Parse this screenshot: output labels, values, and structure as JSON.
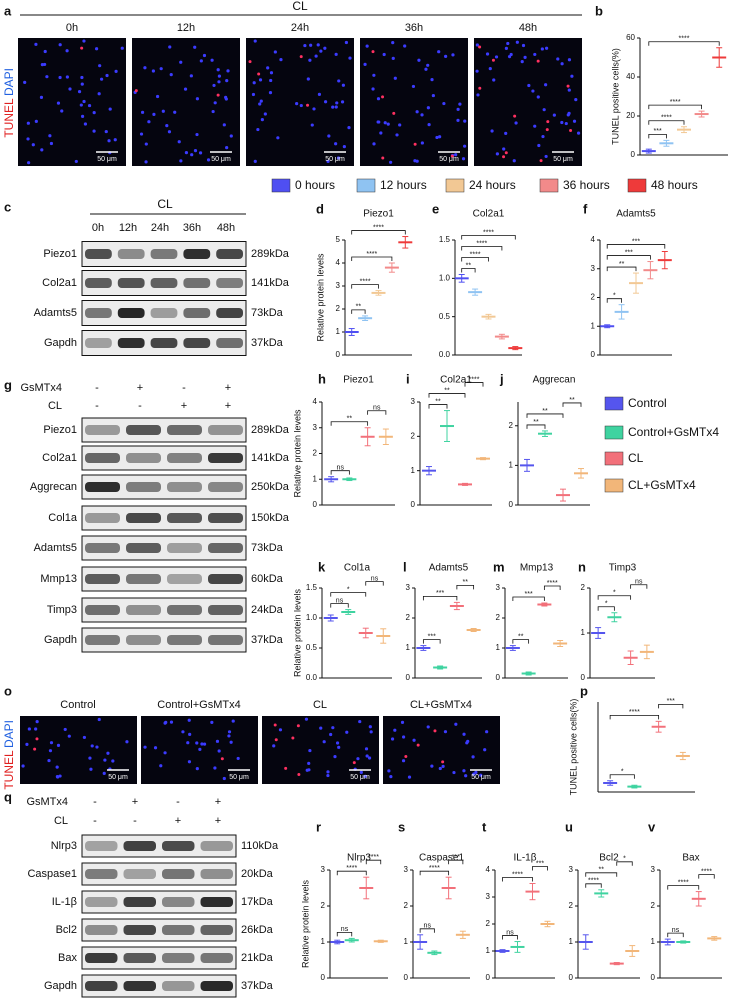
{
  "panel_a": {
    "label": "a",
    "group": "CL",
    "times": [
      "0h",
      "12h",
      "24h",
      "36h",
      "48h"
    ],
    "stain": [
      "TUNEL",
      "DAPI"
    ],
    "scale_bar": "50 μm"
  },
  "time_legend": [
    {
      "name": "0 hours",
      "color": "#4f4ff2"
    },
    {
      "name": "12 hours",
      "color": "#8fc3f2"
    },
    {
      "name": "24 hours",
      "color": "#f2c894"
    },
    {
      "name": "36 hours",
      "color": "#f28a8a"
    },
    {
      "name": "48 hours",
      "color": "#ee3a3a"
    }
  ],
  "panel_c": {
    "label": "c",
    "group": "CL",
    "lanes": [
      "0h",
      "12h",
      "24h",
      "36h",
      "48h"
    ],
    "rows": [
      {
        "protein": "Piezo1",
        "size": "289kDa"
      },
      {
        "protein": "Col2a1",
        "size": "141kDa"
      },
      {
        "protein": "Adamts5",
        "size": "73kDa"
      },
      {
        "protein": "Gapdh",
        "size": "37kDa"
      }
    ]
  },
  "panel_g": {
    "label": "g",
    "conditions": [
      {
        "name": "GsMTx4",
        "signs": [
          "-",
          "+",
          "-",
          "+"
        ]
      },
      {
        "name": "CL",
        "signs": [
          "-",
          "-",
          "+",
          "+"
        ]
      }
    ],
    "rows": [
      {
        "protein": "Piezo1",
        "size": "289kDa"
      },
      {
        "protein": "Col2a1",
        "size": "141kDa"
      },
      {
        "protein": "Aggrecan",
        "size": "250kDa"
      },
      {
        "protein": "Col1a",
        "size": "150kDa"
      },
      {
        "protein": "Adamts5",
        "size": "73kDa"
      },
      {
        "protein": "Mmp13",
        "size": "60kDa"
      },
      {
        "protein": "Timp3",
        "size": "24kDa"
      },
      {
        "protein": "Gapdh",
        "size": "37kDa"
      }
    ]
  },
  "treatment_legend": [
    {
      "name": "Control",
      "color": "#5555ee"
    },
    {
      "name": "Control+GsMTx4",
      "color": "#3fd3a0"
    },
    {
      "name": "CL",
      "color": "#f2707a"
    },
    {
      "name": "CL+GsMTx4",
      "color": "#f2b679"
    }
  ],
  "panel_o": {
    "label": "o",
    "groups": [
      "Control",
      "Control+GsMTx4",
      "CL",
      "CL+GsMTx4"
    ],
    "stain": [
      "TUNEL",
      "DAPI"
    ],
    "scale_bar": "50 μm"
  },
  "panel_q": {
    "label": "q",
    "conditions": [
      {
        "name": "GsMTx4",
        "signs": [
          "-",
          "+",
          "-",
          "+"
        ]
      },
      {
        "name": "CL",
        "signs": [
          "-",
          "-",
          "+",
          "+"
        ]
      }
    ],
    "rows": [
      {
        "protein": "Nlrp3",
        "size": "110kDa"
      },
      {
        "protein": "Caspase1",
        "size": "20kDa"
      },
      {
        "protein": "IL-1β",
        "size": "17kDa"
      },
      {
        "protein": "Bcl2",
        "size": "26kDa"
      },
      {
        "protein": "Bax",
        "size": "21kDa"
      },
      {
        "protein": "Gapdh",
        "size": "37kDa"
      }
    ]
  },
  "chart_data": [
    {
      "type": "dotplot",
      "panel": "b",
      "ylabel": "TUNEL positive cells(%)",
      "values": [
        2,
        6,
        13,
        21,
        50
      ],
      "errors": [
        1,
        1.5,
        1.5,
        1.5,
        5
      ],
      "colors": [
        "#4f4ff2",
        "#8fc3f2",
        "#f2c894",
        "#f28a8a",
        "#ee3a3a"
      ],
      "ylim": [
        0,
        60
      ],
      "yticks": [
        0,
        20,
        40,
        60
      ],
      "brackets": [
        {
          "label": "***",
          "groups": [
            0,
            1
          ]
        },
        {
          "label": "****",
          "groups": [
            0,
            2
          ]
        },
        {
          "label": "****",
          "groups": [
            0,
            3
          ]
        },
        {
          "label": "****",
          "groups": [
            0,
            4
          ]
        }
      ]
    },
    {
      "type": "dotplot",
      "panel": "d",
      "title": "Piezo1",
      "ylabel": "Relative protein levels",
      "values": [
        1,
        1.6,
        2.7,
        3.8,
        4.9
      ],
      "errors": [
        0.15,
        0.1,
        0.1,
        0.2,
        0.25
      ],
      "colors": [
        "#4f4ff2",
        "#8fc3f2",
        "#f2c894",
        "#f28a8a",
        "#ee3a3a"
      ],
      "ylim": [
        0,
        5
      ],
      "yticks": [
        0,
        1,
        2,
        3,
        4,
        5
      ],
      "brackets": [
        {
          "label": "**",
          "groups": [
            0,
            1
          ]
        },
        {
          "label": "****",
          "groups": [
            0,
            2
          ]
        },
        {
          "label": "****",
          "groups": [
            0,
            3
          ]
        },
        {
          "label": "****",
          "groups": [
            0,
            4
          ]
        }
      ]
    },
    {
      "type": "dotplot",
      "panel": "e",
      "title": "Col2a1",
      "values": [
        1,
        0.82,
        0.5,
        0.24,
        0.09
      ],
      "errors": [
        0.05,
        0.04,
        0.03,
        0.03,
        0.02
      ],
      "colors": [
        "#4f4ff2",
        "#8fc3f2",
        "#f2c894",
        "#f28a8a",
        "#ee3a3a"
      ],
      "ylim": [
        0,
        1.5
      ],
      "yticks": [
        {
          "value": 0,
          "label": "0.0"
        },
        0.5,
        {
          "value": 1,
          "label": "1.0"
        },
        1.5
      ],
      "brackets": [
        {
          "label": "**",
          "groups": [
            0,
            1
          ]
        },
        {
          "label": "****",
          "groups": [
            0,
            2
          ]
        },
        {
          "label": "****",
          "groups": [
            0,
            3
          ]
        },
        {
          "label": "****",
          "groups": [
            0,
            4
          ]
        }
      ]
    },
    {
      "type": "dotplot",
      "panel": "f",
      "title": "Adamts5",
      "values": [
        1,
        1.5,
        2.5,
        2.95,
        3.3
      ],
      "errors": [
        0.05,
        0.25,
        0.35,
        0.3,
        0.3
      ],
      "colors": [
        "#4f4ff2",
        "#8fc3f2",
        "#f2c894",
        "#f28a8a",
        "#ee3a3a"
      ],
      "ylim": [
        0,
        4
      ],
      "yticks": [
        0,
        1,
        2,
        3,
        4
      ],
      "brackets": [
        {
          "label": "*",
          "groups": [
            0,
            1
          ]
        },
        {
          "label": "**",
          "groups": [
            0,
            2
          ]
        },
        {
          "label": "***",
          "groups": [
            0,
            3
          ]
        },
        {
          "label": "***",
          "groups": [
            0,
            4
          ]
        }
      ]
    },
    {
      "type": "dotplot",
      "panel": "h",
      "title": "Piezo1",
      "ylabel": "Relative protein levels",
      "values": [
        1,
        1,
        2.65,
        2.65
      ],
      "errors": [
        0.1,
        0.05,
        0.35,
        0.3
      ],
      "colors": [
        "#5555ee",
        "#3fd3a0",
        "#f2707a",
        "#f2b679"
      ],
      "ylim": [
        0,
        4
      ],
      "yticks": [
        0,
        1,
        2,
        3,
        4
      ],
      "brackets": [
        {
          "label": "ns",
          "groups": [
            0,
            1
          ]
        },
        {
          "label": "**",
          "groups": [
            0,
            2
          ]
        },
        {
          "label": "ns",
          "groups": [
            2,
            3
          ]
        }
      ]
    },
    {
      "type": "dotplot",
      "panel": "i",
      "title": "Col2a1",
      "values": [
        1,
        2.3,
        0.6,
        1.35
      ],
      "errors": [
        0.12,
        0.45,
        0.03,
        0.03
      ],
      "colors": [
        "#5555ee",
        "#3fd3a0",
        "#f2707a",
        "#f2b679"
      ],
      "ylim": [
        0,
        3
      ],
      "yticks": [
        0,
        1,
        2,
        3
      ],
      "brackets": [
        {
          "label": "**",
          "groups": [
            0,
            1
          ]
        },
        {
          "label": "**",
          "groups": [
            0,
            2
          ]
        },
        {
          "label": "****",
          "groups": [
            2,
            3
          ]
        }
      ]
    },
    {
      "type": "dotplot",
      "panel": "j",
      "title": "Aggrecan",
      "values": [
        1,
        1.8,
        0.25,
        0.8
      ],
      "errors": [
        0.15,
        0.07,
        0.15,
        0.12
      ],
      "colors": [
        "#5555ee",
        "#3fd3a0",
        "#f2707a",
        "#f2b679"
      ],
      "ylim": [
        0,
        2.6
      ],
      "yticks": [
        0,
        1,
        2
      ],
      "brackets": [
        {
          "label": "**",
          "groups": [
            0,
            1
          ]
        },
        {
          "label": "**",
          "groups": [
            0,
            2
          ]
        },
        {
          "label": "**",
          "groups": [
            2,
            3
          ]
        }
      ]
    },
    {
      "type": "dotplot",
      "panel": "k",
      "title": "Col1a",
      "ylabel": "Relative protein levels",
      "values": [
        1,
        1.1,
        0.75,
        0.7
      ],
      "errors": [
        0.05,
        0.04,
        0.08,
        0.12
      ],
      "colors": [
        "#5555ee",
        "#3fd3a0",
        "#f2707a",
        "#f2b679"
      ],
      "ylim": [
        0,
        1.5
      ],
      "yticks": [
        {
          "value": 0,
          "label": "0.0"
        },
        0.5,
        {
          "value": 1,
          "label": "1.0"
        },
        1.5
      ],
      "brackets": [
        {
          "label": "ns",
          "groups": [
            0,
            1
          ]
        },
        {
          "label": "*",
          "groups": [
            0,
            2
          ]
        },
        {
          "label": "ns",
          "groups": [
            2,
            3
          ]
        }
      ]
    },
    {
      "type": "dotplot",
      "panel": "l",
      "title": "Adamts5",
      "values": [
        1,
        0.35,
        2.4,
        1.6
      ],
      "errors": [
        0.08,
        0.05,
        0.12,
        0.05
      ],
      "colors": [
        "#5555ee",
        "#3fd3a0",
        "#f2707a",
        "#f2b679"
      ],
      "ylim": [
        0,
        3
      ],
      "yticks": [
        0,
        1,
        2,
        3
      ],
      "brackets": [
        {
          "label": "***",
          "groups": [
            0,
            1
          ]
        },
        {
          "label": "***",
          "groups": [
            0,
            2
          ]
        },
        {
          "label": "**",
          "groups": [
            2,
            3
          ]
        }
      ]
    },
    {
      "type": "dotplot",
      "panel": "m",
      "title": "Mmp13",
      "values": [
        1,
        0.15,
        2.45,
        1.15
      ],
      "errors": [
        0.08,
        0.05,
        0.05,
        0.1
      ],
      "colors": [
        "#5555ee",
        "#3fd3a0",
        "#f2707a",
        "#f2b679"
      ],
      "ylim": [
        0,
        3
      ],
      "yticks": [
        0,
        1,
        2,
        3
      ],
      "brackets": [
        {
          "label": "**",
          "groups": [
            0,
            1
          ]
        },
        {
          "label": "***",
          "groups": [
            0,
            2
          ]
        },
        {
          "label": "****",
          "groups": [
            2,
            3
          ]
        }
      ]
    },
    {
      "type": "dotplot",
      "panel": "n",
      "title": "Timp3",
      "values": [
        1,
        1.35,
        0.45,
        0.58
      ],
      "errors": [
        0.12,
        0.1,
        0.15,
        0.15
      ],
      "colors": [
        "#5555ee",
        "#3fd3a0",
        "#f2707a",
        "#f2b679"
      ],
      "ylim": [
        0,
        2
      ],
      "yticks": [
        0,
        1,
        2
      ],
      "brackets": [
        {
          "label": "*",
          "groups": [
            0,
            1
          ]
        },
        {
          "label": "*",
          "groups": [
            0,
            2
          ]
        },
        {
          "label": "ns",
          "groups": [
            2,
            3
          ]
        }
      ]
    },
    {
      "type": "dotplot",
      "panel": "p",
      "ylabel": "TUNEL positive cells(%)",
      "values": [
        2,
        1.2,
        14.5,
        8
      ],
      "errors": [
        0.5,
        0.3,
        1.2,
        0.8
      ],
      "colors": [
        "#5555ee",
        "#3fd3a0",
        "#f2707a",
        "#f2b679"
      ],
      "ylim": [
        0,
        20
      ],
      "brackets": [
        {
          "label": "*",
          "groups": [
            0,
            1
          ]
        },
        {
          "label": "****",
          "groups": [
            0,
            2
          ]
        },
        {
          "label": "***",
          "groups": [
            2,
            3
          ]
        }
      ]
    },
    {
      "type": "dotplot",
      "panel": "r",
      "title": "Nlrp3",
      "ylabel": "Relative protein levels",
      "values": [
        1,
        1.05,
        2.5,
        1.02
      ],
      "errors": [
        0.05,
        0.05,
        0.3,
        0.03
      ],
      "colors": [
        "#5555ee",
        "#3fd3a0",
        "#f2707a",
        "#f2b679"
      ],
      "ylim": [
        0,
        3
      ],
      "yticks": [
        0,
        1,
        2,
        3
      ],
      "brackets": [
        {
          "label": "ns",
          "groups": [
            0,
            1
          ]
        },
        {
          "label": "****",
          "groups": [
            0,
            2
          ]
        },
        {
          "label": "****",
          "groups": [
            2,
            3
          ]
        }
      ]
    },
    {
      "type": "dotplot",
      "panel": "s",
      "title": "Caspase1",
      "values": [
        1,
        0.7,
        2.5,
        1.2
      ],
      "errors": [
        0.2,
        0.05,
        0.3,
        0.1
      ],
      "colors": [
        "#5555ee",
        "#3fd3a0",
        "#f2707a",
        "#f2b679"
      ],
      "ylim": [
        0,
        3
      ],
      "yticks": [
        0,
        1,
        2,
        3
      ],
      "brackets": [
        {
          "label": "ns",
          "groups": [
            0,
            1
          ]
        },
        {
          "label": "****",
          "groups": [
            0,
            2
          ]
        },
        {
          "label": "***",
          "groups": [
            2,
            3
          ]
        }
      ]
    },
    {
      "type": "dotplot",
      "panel": "t",
      "title": "IL-1β",
      "values": [
        1,
        1.15,
        3.2,
        2
      ],
      "errors": [
        0.05,
        0.2,
        0.3,
        0.1
      ],
      "colors": [
        "#5555ee",
        "#3fd3a0",
        "#f2707a",
        "#f2b679"
      ],
      "ylim": [
        0,
        4
      ],
      "yticks": [
        0,
        1,
        2,
        3,
        4
      ],
      "brackets": [
        {
          "label": "ns",
          "groups": [
            0,
            1
          ]
        },
        {
          "label": "****",
          "groups": [
            0,
            2
          ]
        },
        {
          "label": "***",
          "groups": [
            2,
            3
          ]
        }
      ]
    },
    {
      "type": "dotplot",
      "panel": "u",
      "title": "Bcl2",
      "values": [
        1,
        2.35,
        0.4,
        0.75
      ],
      "errors": [
        0.2,
        0.1,
        0.03,
        0.15
      ],
      "colors": [
        "#5555ee",
        "#3fd3a0",
        "#f2707a",
        "#f2b679"
      ],
      "ylim": [
        0,
        3
      ],
      "yticks": [
        0,
        1,
        2,
        3
      ],
      "brackets": [
        {
          "label": "****",
          "groups": [
            0,
            1
          ]
        },
        {
          "label": "**",
          "groups": [
            0,
            2
          ]
        },
        {
          "label": "*",
          "groups": [
            2,
            3
          ]
        }
      ]
    },
    {
      "type": "dotplot",
      "panel": "v",
      "title": "Bax",
      "values": [
        1,
        1,
        2.2,
        1.1
      ],
      "errors": [
        0.08,
        0.03,
        0.2,
        0.05
      ],
      "colors": [
        "#5555ee",
        "#3fd3a0",
        "#f2707a",
        "#f2b679"
      ],
      "ylim": [
        0,
        3
      ],
      "yticks": [
        0,
        1,
        2,
        3
      ],
      "brackets": [
        {
          "label": "ns",
          "groups": [
            0,
            1
          ]
        },
        {
          "label": "****",
          "groups": [
            0,
            2
          ]
        },
        {
          "label": "****",
          "groups": [
            2,
            3
          ]
        }
      ]
    }
  ]
}
